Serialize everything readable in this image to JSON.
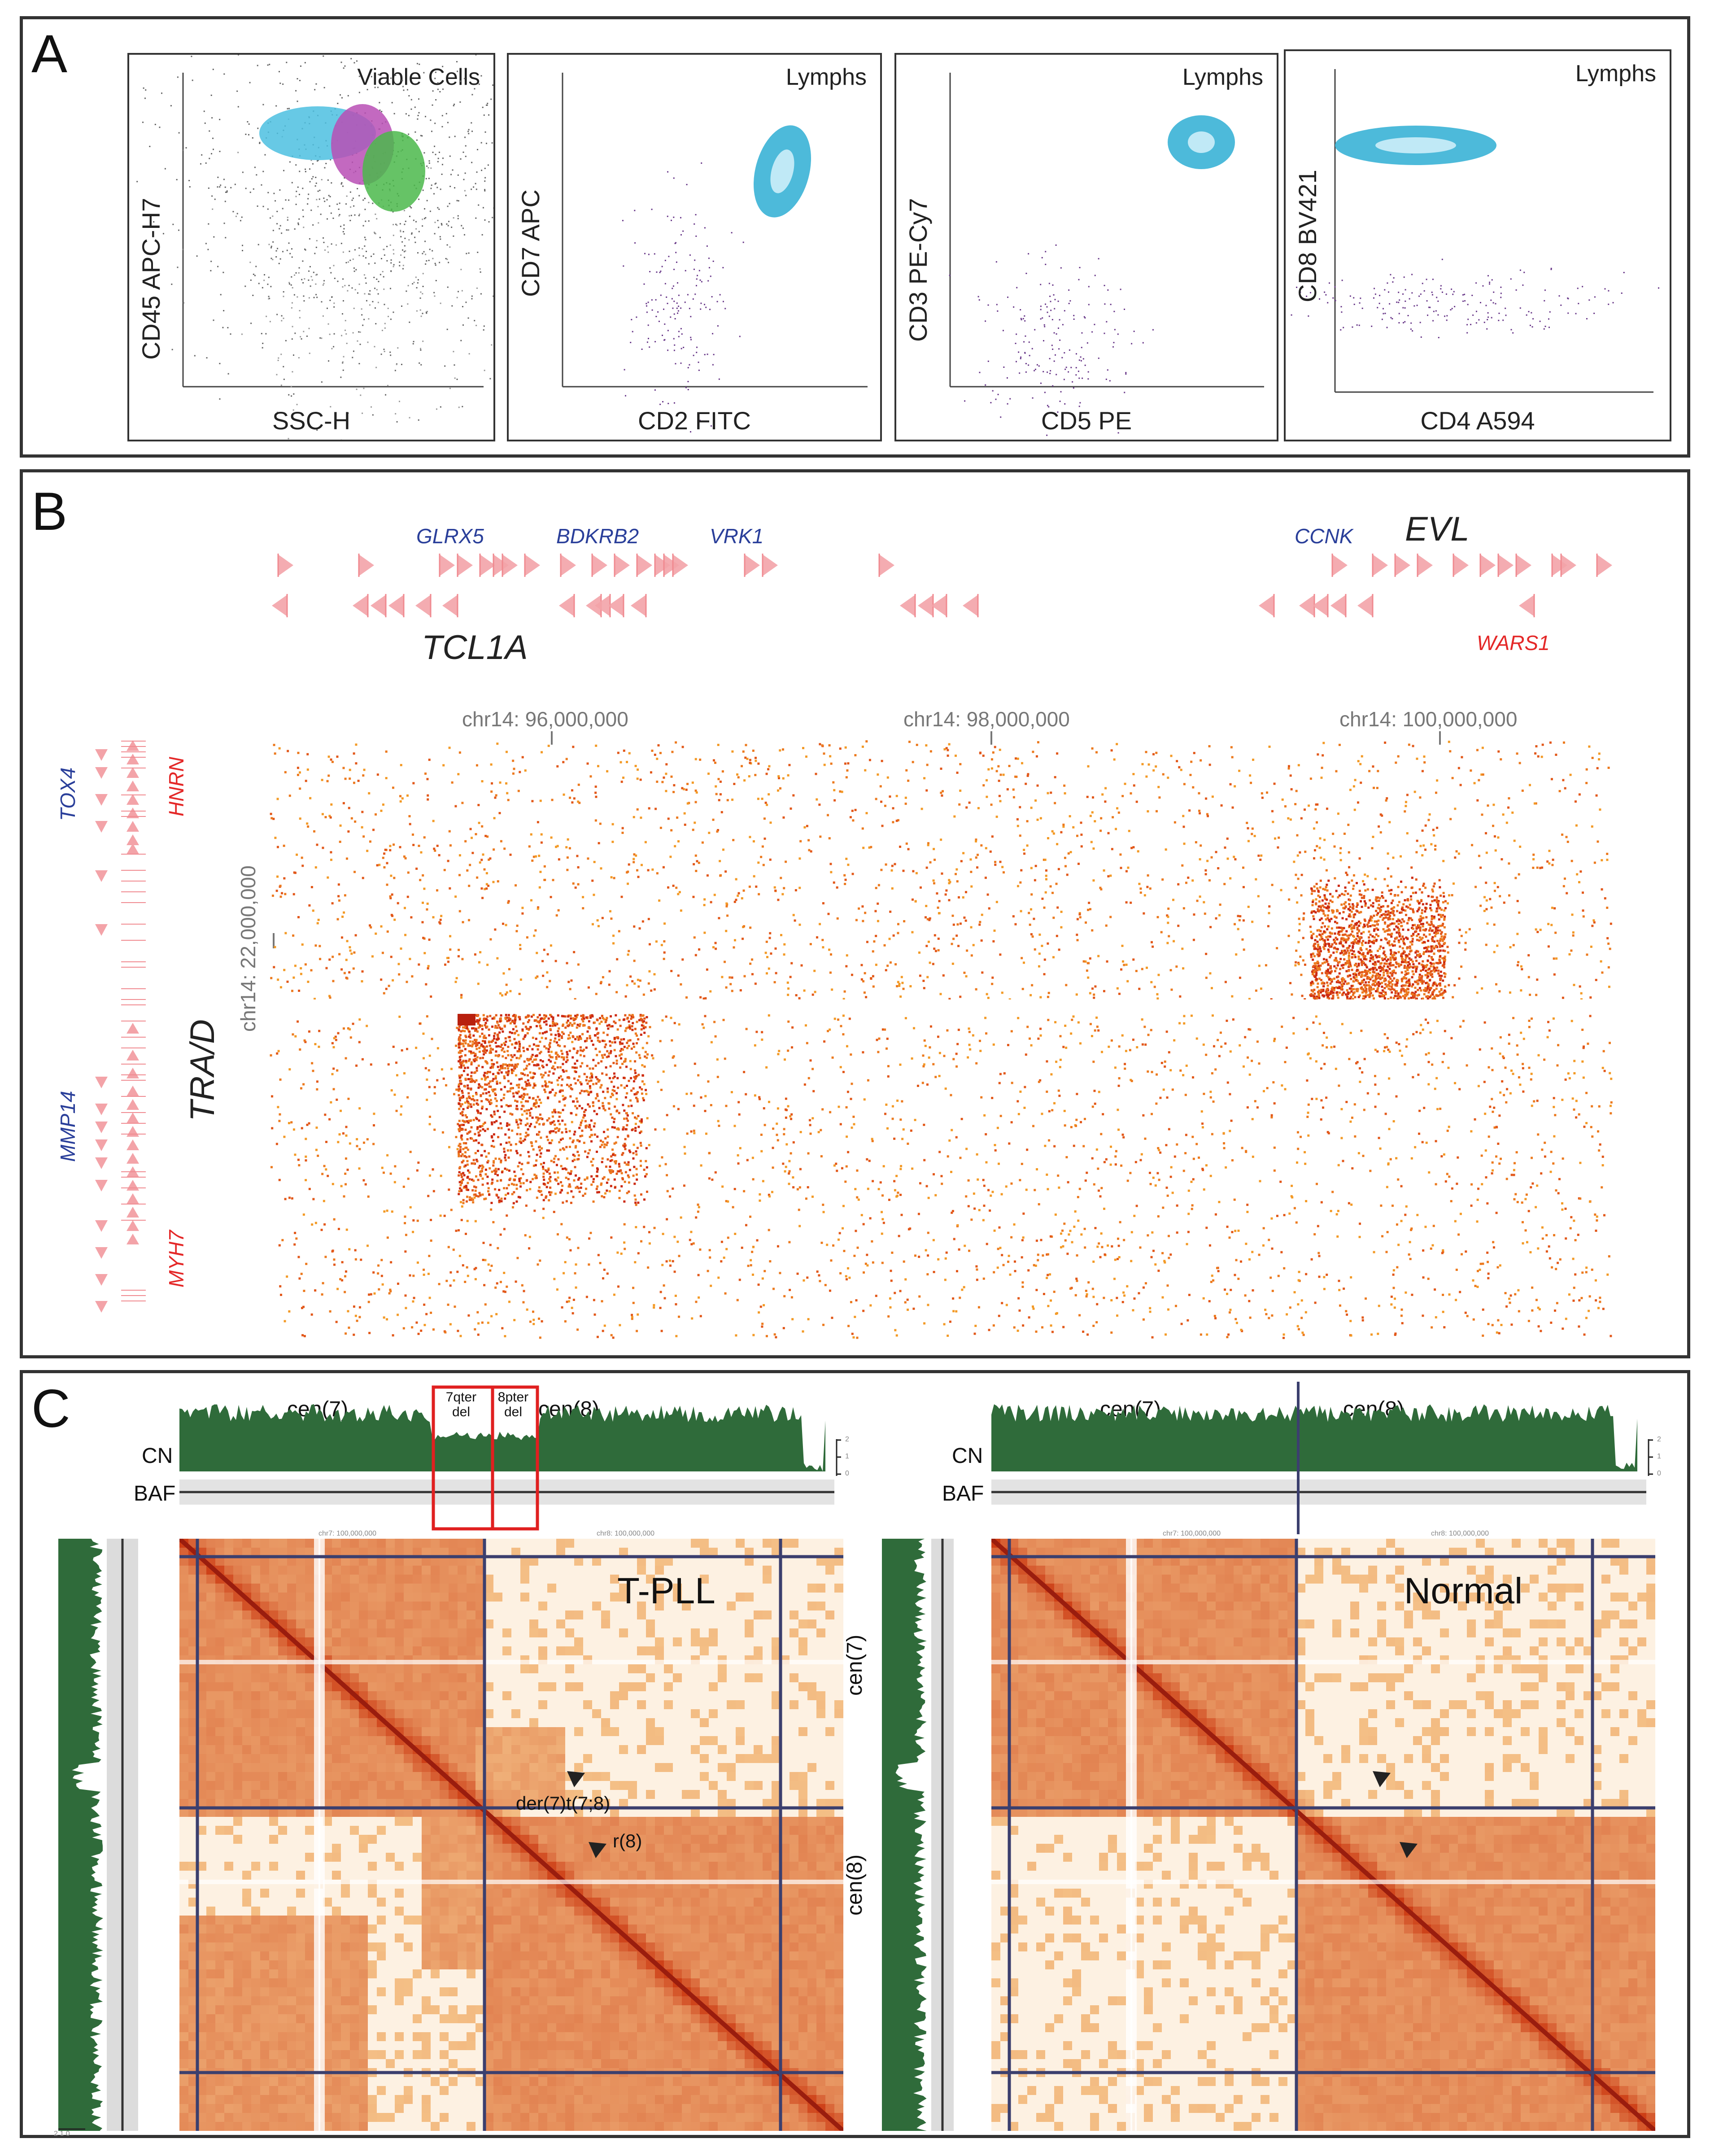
{
  "panels": {
    "a_letter": "A",
    "b_letter": "B",
    "c_letter": "C"
  },
  "panel_a": {
    "plots": [
      {
        "gate": "Viable Cells",
        "x_label": "SSC-H",
        "y_label": "CD45 APC-H7"
      },
      {
        "gate": "Lymphs",
        "x_label": "CD2 FITC",
        "y_label": "CD7 APC"
      },
      {
        "gate": "Lymphs",
        "x_label": "CD5 PE",
        "y_label": "CD3 PE-Cy7"
      },
      {
        "gate": "Lymphs",
        "x_label": "CD4 A594",
        "y_label": "CD8 BV421"
      }
    ]
  },
  "panel_b": {
    "genes_top_blue": [
      "GLRX5",
      "BDKRB2",
      "VRK1",
      "CCNK"
    ],
    "gene_top_big_1": "EVL",
    "gene_top_big_2": "TCL1A",
    "gene_top_red": "WARS1",
    "coords_x": [
      "chr14: 96,000,000",
      "chr14: 98,000,000",
      "chr14: 100,000,000"
    ],
    "coord_y": "chr14: 22,000,000",
    "genes_left_blue": [
      "TOX4",
      "MMP14"
    ],
    "genes_left_red": [
      "HNRN",
      "MYH7"
    ],
    "locus_label": "TRA/D"
  },
  "panel_c": {
    "left": {
      "cen7": "cen(7)",
      "cen8": "cen(8)",
      "box1_line1": "7qter",
      "box1_line2": "del",
      "box2_line1": "8pter",
      "box2_line2": "del",
      "cn": "CN",
      "baf": "BAF",
      "chr7_axis": "chr7: 100,000,000",
      "chr8_axis": "chr8: 100,000,000",
      "title": "T-PLL",
      "annot_1": "der(7)t(7;8)",
      "annot_2": "r(8)",
      "scale_ticks": [
        "2",
        "1",
        "0"
      ]
    },
    "right": {
      "cen7": "cen(7)",
      "cen8": "cen(8)",
      "cn": "CN",
      "baf": "BAF",
      "chr7_axis": "chr7: 100,000,000",
      "chr8_axis": "chr8: 100,000,000",
      "title": "Normal",
      "side_cen7": "cen(7)",
      "side_cen8": "cen(8)",
      "scale_ticks": [
        "2",
        "1",
        "0"
      ]
    }
  },
  "colors": {
    "frame": "#333333",
    "cn_green": "#2f6b3a",
    "hic_light": "#f7c98a",
    "hic_mid": "#ef8f2f",
    "hic_dark": "#c83a14",
    "gene_blue": "#2a3f9a",
    "gene_red": "#e42828",
    "box_red": "#e02020",
    "grid_navy": "#3b3f6e"
  }
}
